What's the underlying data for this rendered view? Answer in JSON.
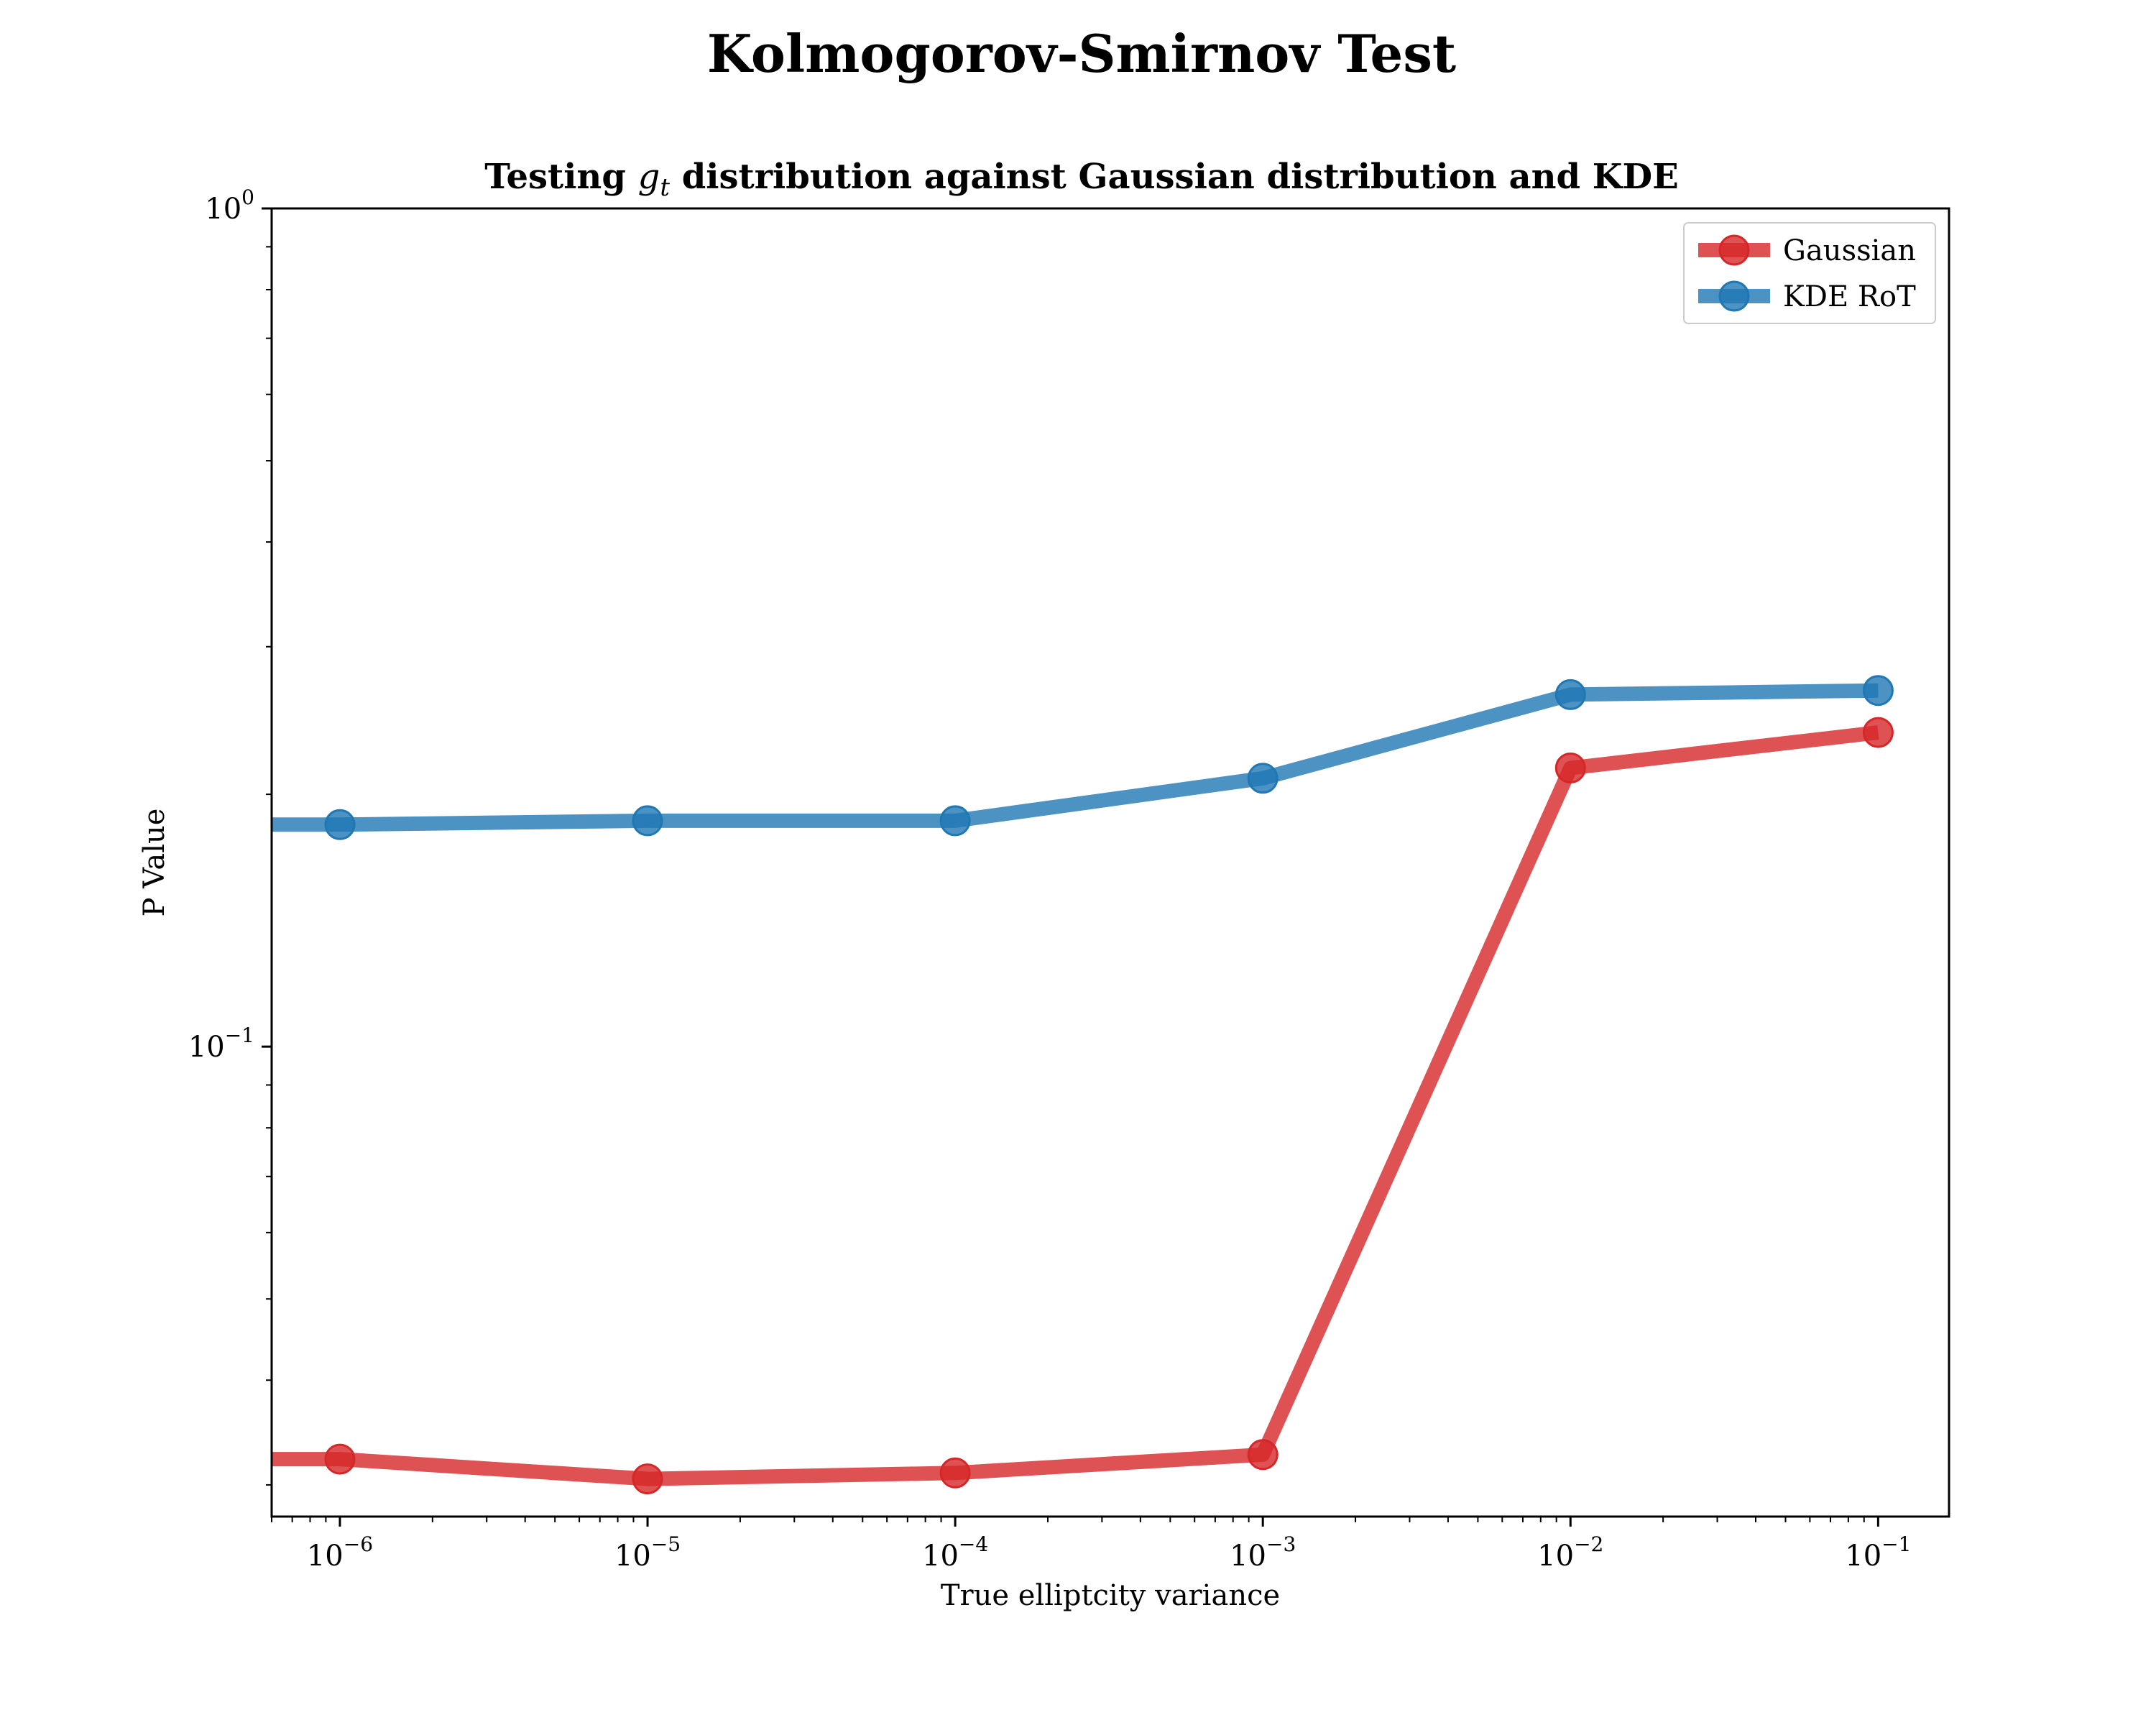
{
  "chart_data": {
    "type": "line",
    "suptitle": "Kolmogorov-Smirnov Test",
    "title_prefix": "Testing ",
    "title_var": "g",
    "title_sub": "t",
    "title_suffix": " distribution against Gaussian distribution and KDE",
    "xlabel": "True elliptcity variance",
    "ylabel": "P Value",
    "xscale": "log",
    "yscale": "log",
    "xlim": [
      6e-07,
      0.17
    ],
    "ylim": [
      0.0275,
      1.0
    ],
    "xticks": [
      {
        "base": "10",
        "exp": "−6",
        "value": 1e-06
      },
      {
        "base": "10",
        "exp": "−5",
        "value": 1e-05
      },
      {
        "base": "10",
        "exp": "−4",
        "value": 0.0001
      },
      {
        "base": "10",
        "exp": "−3",
        "value": 0.001
      },
      {
        "base": "10",
        "exp": "−2",
        "value": 0.01
      },
      {
        "base": "10",
        "exp": "−1",
        "value": 0.1
      }
    ],
    "yticks": [
      {
        "base": "10",
        "exp": "0",
        "value": 1.0
      },
      {
        "base": "10",
        "exp": "−1",
        "value": 0.1
      }
    ],
    "grid": false,
    "legend_position": "top-right",
    "x": [
      1e-06,
      1e-05,
      0.0001,
      0.001,
      0.01,
      0.1
    ],
    "series": [
      {
        "name": "Gaussian",
        "color": "#d62728",
        "values": [
          0.0322,
          0.0305,
          0.031,
          0.0326,
          0.215,
          0.237
        ]
      },
      {
        "name": "KDE RoT",
        "color": "#1f77b4",
        "values": [
          0.184,
          0.186,
          0.186,
          0.209,
          0.263,
          0.266
        ]
      }
    ]
  }
}
